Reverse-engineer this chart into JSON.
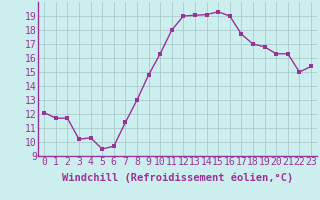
{
  "x": [
    0,
    1,
    2,
    3,
    4,
    5,
    6,
    7,
    8,
    9,
    10,
    11,
    12,
    13,
    14,
    15,
    16,
    17,
    18,
    19,
    20,
    21,
    22,
    23
  ],
  "y": [
    12.1,
    11.7,
    11.7,
    10.2,
    10.3,
    9.5,
    9.7,
    11.4,
    13.0,
    14.8,
    16.3,
    18.0,
    19.0,
    19.05,
    19.1,
    19.3,
    19.0,
    17.7,
    17.0,
    16.8,
    16.3,
    16.3,
    15.0,
    15.4
  ],
  "line_color": "#993399",
  "marker_color": "#993399",
  "bg_color": "#cceeee",
  "grid_color": "#aacccc",
  "xlabel": "Windchill (Refroidissement éolien,°C)",
  "xlim": [
    -0.5,
    23.5
  ],
  "ylim": [
    9,
    20
  ],
  "yticks": [
    9,
    10,
    11,
    12,
    13,
    14,
    15,
    16,
    17,
    18,
    19
  ],
  "xtick_labels": [
    "0",
    "1",
    "2",
    "3",
    "4",
    "5",
    "6",
    "7",
    "8",
    "9",
    "10",
    "11",
    "12",
    "13",
    "14",
    "15",
    "16",
    "17",
    "18",
    "19",
    "20",
    "21",
    "22",
    "23"
  ],
  "xlabel_fontsize": 7.5,
  "tick_fontsize": 7,
  "line_width": 1.0,
  "marker_size": 2.5
}
